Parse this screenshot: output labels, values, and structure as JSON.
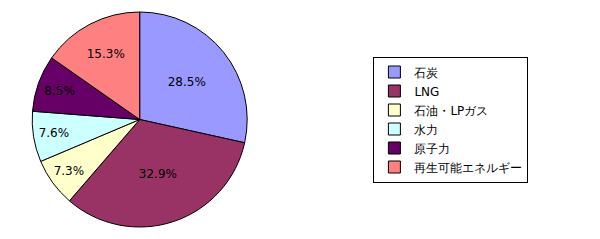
{
  "chart_data": {
    "type": "pie",
    "categories": [
      "石炭",
      "LNG",
      "石油・LPガス",
      "水力",
      "原子力",
      "再生可能エネルギー"
    ],
    "values": [
      28.5,
      32.9,
      7.3,
      7.6,
      8.5,
      15.3
    ],
    "value_labels": [
      "28.5%",
      "32.9%",
      "7.3%",
      "7.6%",
      "8.5%",
      "15.3%"
    ],
    "colors": [
      "#9999ff",
      "#993366",
      "#ffffcc",
      "#ccffff",
      "#660066",
      "#ff8080"
    ],
    "data_labels": true,
    "legend": "right"
  }
}
